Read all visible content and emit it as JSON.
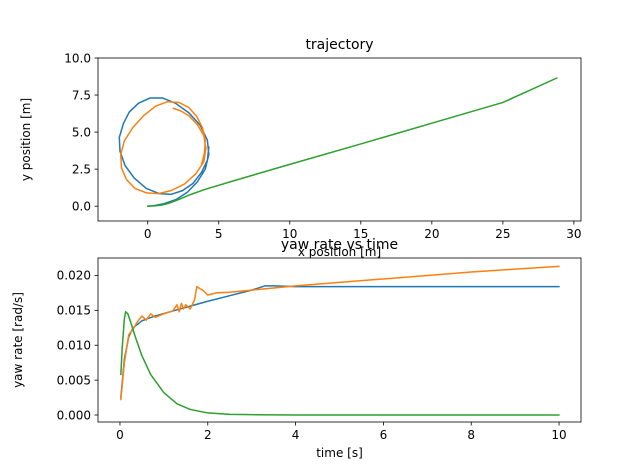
{
  "chart_data": [
    {
      "type": "line",
      "title": "trajectory",
      "xlabel": "x position [m]",
      "ylabel": "y position [m]",
      "xlim": [
        -3.5,
        30.5
      ],
      "ylim": [
        -1,
        10
      ],
      "xticks": [
        0,
        5,
        10,
        15,
        20,
        25,
        30
      ],
      "yticks": [
        0.0,
        2.5,
        5.0,
        7.5,
        10.0
      ],
      "ytick_labels": [
        "0.0",
        "2.5",
        "5.0",
        "7.5",
        "10.0"
      ],
      "grid": false,
      "series": [
        {
          "color": "#1f77b4",
          "x": [
            0.0,
            0.3,
            0.6,
            1.2,
            2.0,
            2.8,
            3.5,
            4.05,
            4.3,
            4.2,
            3.7,
            2.9,
            1.95,
            1.05,
            0.15,
            -0.65,
            -1.3,
            -1.7,
            -2.0,
            -1.95,
            -1.6,
            -0.95,
            -0.1,
            0.8,
            1.65,
            2.45,
            3.2,
            3.8,
            4.2,
            4.3
          ],
          "y": [
            0.0,
            0.02,
            0.06,
            0.18,
            0.45,
            0.95,
            1.65,
            2.5,
            3.5,
            4.45,
            5.45,
            6.3,
            6.95,
            7.3,
            7.3,
            6.95,
            6.35,
            5.6,
            4.65,
            3.7,
            2.75,
            1.9,
            1.2,
            0.85,
            0.8,
            1.05,
            1.55,
            2.3,
            3.1,
            4.0
          ]
        },
        {
          "color": "#ff7f0e",
          "x": [
            1.8,
            2.3,
            2.9,
            3.5,
            3.95,
            4.1,
            3.95,
            3.4,
            2.6,
            1.65,
            0.75,
            -0.1,
            -0.9,
            -1.5,
            -1.85,
            -1.9,
            -1.65,
            -1.05,
            -0.3,
            0.55,
            1.4,
            2.2,
            2.9,
            3.45,
            3.85,
            4.05,
            4.0,
            3.8
          ],
          "y": [
            6.6,
            6.45,
            6.1,
            5.5,
            4.75,
            3.9,
            3.0,
            2.2,
            1.5,
            1.05,
            0.85,
            0.9,
            1.2,
            1.8,
            2.6,
            3.5,
            4.4,
            5.3,
            6.1,
            6.75,
            7.05,
            7.0,
            6.65,
            6.05,
            5.3,
            4.45,
            3.6,
            2.85
          ]
        },
        {
          "color": "#2ca02c",
          "x": [
            0.0,
            0.5,
            1.0,
            1.5,
            2.0,
            2.5,
            3.0,
            4.0,
            6.0,
            10.0,
            15.0,
            20.0,
            25.0,
            28.8
          ],
          "y": [
            0.0,
            0.02,
            0.08,
            0.2,
            0.38,
            0.58,
            0.78,
            1.12,
            1.7,
            2.82,
            4.2,
            5.6,
            7.0,
            8.65
          ]
        }
      ]
    },
    {
      "type": "line",
      "title": "yaw rate vs time",
      "xlabel": "time [s]",
      "ylabel": "yaw rate [rad/s]",
      "xlim": [
        -0.5,
        10.5
      ],
      "ylim": [
        -0.001,
        0.0225
      ],
      "xticks": [
        0,
        2,
        4,
        6,
        8,
        10
      ],
      "yticks": [
        0.0,
        0.005,
        0.01,
        0.015,
        0.02
      ],
      "ytick_labels": [
        "0.000",
        "0.005",
        "0.010",
        "0.015",
        "0.020"
      ],
      "grid": false,
      "series": [
        {
          "color": "#1f77b4",
          "x": [
            0.02,
            0.1,
            0.2,
            0.3,
            0.5,
            0.8,
            1.2,
            1.6,
            2.0,
            2.5,
            3.0,
            3.3,
            3.5,
            4.0,
            5.0,
            6.0,
            7.0,
            8.0,
            9.0,
            10.0
          ],
          "y": [
            0.0025,
            0.008,
            0.0112,
            0.0125,
            0.0135,
            0.0142,
            0.0149,
            0.0156,
            0.0163,
            0.0171,
            0.0179,
            0.0185,
            0.0185,
            0.0184,
            0.0184,
            0.0184,
            0.0184,
            0.0184,
            0.0184,
            0.0184
          ]
        },
        {
          "color": "#ff7f0e",
          "x": [
            0.02,
            0.1,
            0.2,
            0.3,
            0.4,
            0.5,
            0.6,
            0.7,
            0.8,
            1.0,
            1.2,
            1.3,
            1.35,
            1.4,
            1.45,
            1.5,
            1.6,
            1.7,
            1.75,
            1.8,
            1.9,
            2.0,
            2.2,
            2.5,
            3.0,
            3.5,
            4.0,
            5.0,
            6.0,
            7.0,
            8.0,
            9.0,
            10.0
          ],
          "y": [
            0.0022,
            0.0075,
            0.0115,
            0.0123,
            0.0134,
            0.0142,
            0.0136,
            0.0145,
            0.014,
            0.0145,
            0.0149,
            0.0158,
            0.0148,
            0.016,
            0.0152,
            0.0158,
            0.0152,
            0.0165,
            0.0184,
            0.0182,
            0.0178,
            0.0172,
            0.0175,
            0.0176,
            0.0179,
            0.0182,
            0.0185,
            0.019,
            0.0195,
            0.02,
            0.0205,
            0.0209,
            0.0213
          ]
        },
        {
          "color": "#2ca02c",
          "x": [
            0.02,
            0.05,
            0.1,
            0.13,
            0.18,
            0.25,
            0.35,
            0.5,
            0.7,
            1.0,
            1.3,
            1.6,
            2.0,
            2.5,
            3.0,
            4.0,
            6.0,
            8.0,
            10.0
          ],
          "y": [
            0.0058,
            0.0095,
            0.0138,
            0.0148,
            0.0145,
            0.0132,
            0.0112,
            0.0085,
            0.0058,
            0.0032,
            0.0016,
            0.0008,
            0.0003,
            0.0001,
            5e-05,
            0.0,
            0.0,
            0.0,
            0.0
          ]
        }
      ]
    }
  ]
}
